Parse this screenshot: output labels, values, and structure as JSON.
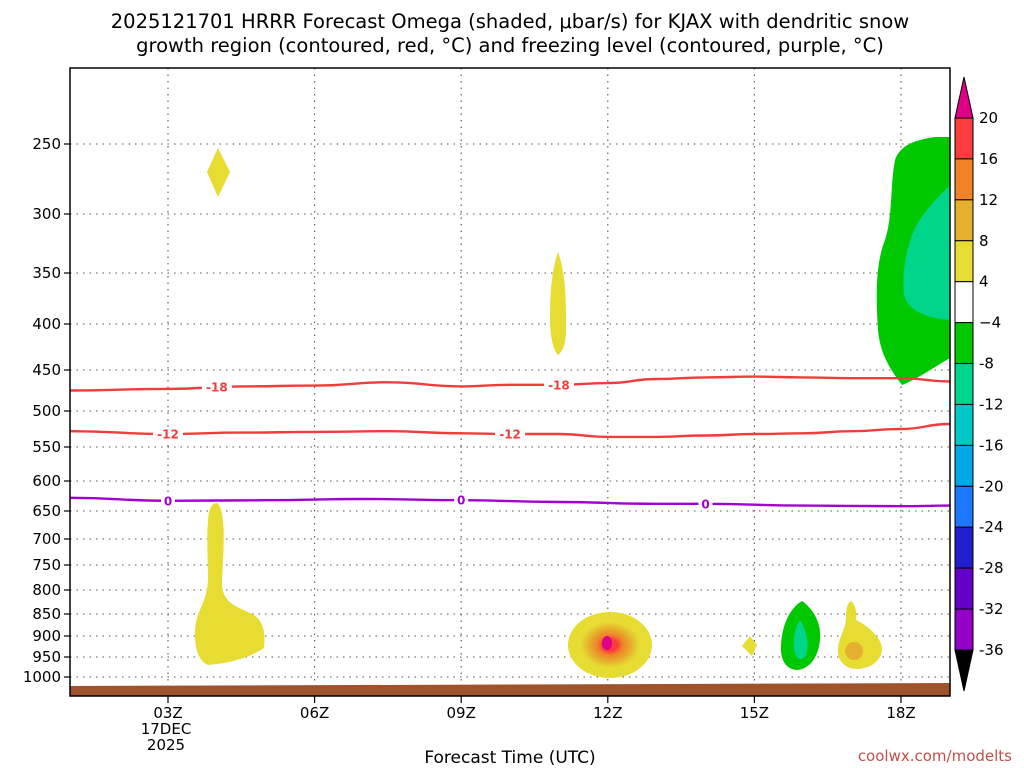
{
  "title_line1": "2025121701 HRRR Forecast Omega (shaded, μbar/s) for KJAX with dendritic snow",
  "title_line2": "growth region (contoured, red, °C) and freezing level (contoured, purple, °C)",
  "credit": "coolwx.com/modelts",
  "chart_data": {
    "type": "contour",
    "title": "2025121701 HRRR Forecast Omega (shaded, μbar/s) for KJAX with dendritic snow growth region (contoured, red, °C) and freezing level (contoured, purple, °C)",
    "xlabel": "Forecast Time (UTC)",
    "ylabel": "",
    "xlim_hours": [
      1,
      19
    ],
    "ylim_hpa": [
      200,
      1025
    ],
    "x_ticks": [
      {
        "hour": 3,
        "label": "03Z",
        "sublabel1": "17DEC",
        "sublabel2": "2025"
      },
      {
        "hour": 6,
        "label": "06Z"
      },
      {
        "hour": 9,
        "label": "09Z"
      },
      {
        "hour": 12,
        "label": "12Z"
      },
      {
        "hour": 15,
        "label": "15Z"
      },
      {
        "hour": 18,
        "label": "18Z"
      }
    ],
    "y_ticks": [
      250,
      300,
      350,
      400,
      450,
      500,
      550,
      600,
      650,
      700,
      750,
      800,
      850,
      900,
      950,
      1000
    ],
    "colorbar": {
      "levels": [
        -36,
        -32,
        -28,
        -24,
        -20,
        -16,
        -12,
        -8,
        -4,
        4,
        8,
        12,
        16,
        20
      ],
      "labels": [
        "-36",
        "-32",
        "-28",
        "-24",
        "-20",
        "-16",
        "-12",
        "-8",
        "−4",
        "4",
        "8",
        "12",
        "16",
        "20"
      ],
      "colors": [
        "#a0a0a0",
        "#9400c8",
        "#6400c8",
        "#2020d0",
        "#1e78ff",
        "#00a8e8",
        "#00c8c8",
        "#00d58c",
        "#00c800",
        "#ffffff",
        "#e6dc32",
        "#e6af2d",
        "#f08228",
        "#fa3c3c",
        "#e00087"
      ]
    },
    "omega_regions": [
      {
        "name": "upper-level rising spot near 04Z",
        "value_range": [
          4,
          8
        ],
        "hour": 4.05,
        "hpa": [
          262,
          287
        ]
      },
      {
        "name": "low-level rising column near 04Z",
        "value_range": [
          4,
          8
        ],
        "hours": [
          3.6,
          5.0
        ],
        "hpa": [
          640,
          970
        ]
      },
      {
        "name": "mid-level rising column near 11Z",
        "value_range": [
          4,
          8
        ],
        "hour": 11.0,
        "hpa": [
          330,
          430
        ]
      },
      {
        "name": "low-level rising maximum near 12Z",
        "value_range": [
          4,
          20
        ],
        "peak_hour": 12.0,
        "peak_hpa": 918
      },
      {
        "name": "small rising spot near 15Z",
        "value_range": [
          4,
          8
        ],
        "hour": 14.95,
        "hpa": 922
      },
      {
        "name": "low-level sinking near 16Z",
        "value_range": [
          -12,
          -4
        ],
        "hour": 16.0,
        "hpa": [
          830,
          965
        ]
      },
      {
        "name": "low-level rising near 17Z",
        "value_range": [
          4,
          12
        ],
        "hour": 17.0,
        "hpa": [
          830,
          965
        ]
      },
      {
        "name": "upper-level sinking after 18Z",
        "value_range": [
          -12,
          -4
        ],
        "hours": [
          17.5,
          19
        ],
        "hpa": [
          245,
          470
        ]
      }
    ],
    "contours": [
      {
        "name": "dendritic -18C isotherm",
        "label": "-18",
        "color": "#f03c3c",
        "x": [
          1,
          3,
          4.5,
          6,
          7.5,
          9,
          10,
          11,
          12,
          13,
          14,
          15,
          16,
          17,
          18,
          19
        ],
        "y": [
          475,
          473,
          470,
          469,
          465,
          470,
          468,
          468,
          466,
          461,
          459,
          458,
          459,
          460,
          460,
          464
        ],
        "label_hours": [
          4,
          11
        ]
      },
      {
        "name": "dendritic -12C isotherm",
        "label": "-12",
        "color": "#f03c3c",
        "x": [
          1,
          3,
          4.5,
          6,
          7.5,
          9,
          10,
          11,
          12,
          13,
          14,
          15,
          16,
          17,
          18,
          19
        ],
        "y": [
          528,
          532,
          530,
          529,
          528,
          531,
          532,
          532,
          536,
          536,
          534,
          532,
          531,
          528,
          525,
          518
        ],
        "label_hours": [
          3,
          10
        ]
      },
      {
        "name": "freezing level 0C",
        "label": "0",
        "color": "#a000d2",
        "x": [
          1,
          3,
          5,
          7,
          9,
          11,
          13,
          14,
          16,
          18,
          19
        ],
        "y": [
          628,
          633,
          632,
          630,
          632,
          635,
          638,
          638,
          641,
          642,
          641
        ],
        "label_hours": [
          3,
          9,
          14
        ]
      }
    ],
    "terrain_label": "surface"
  }
}
